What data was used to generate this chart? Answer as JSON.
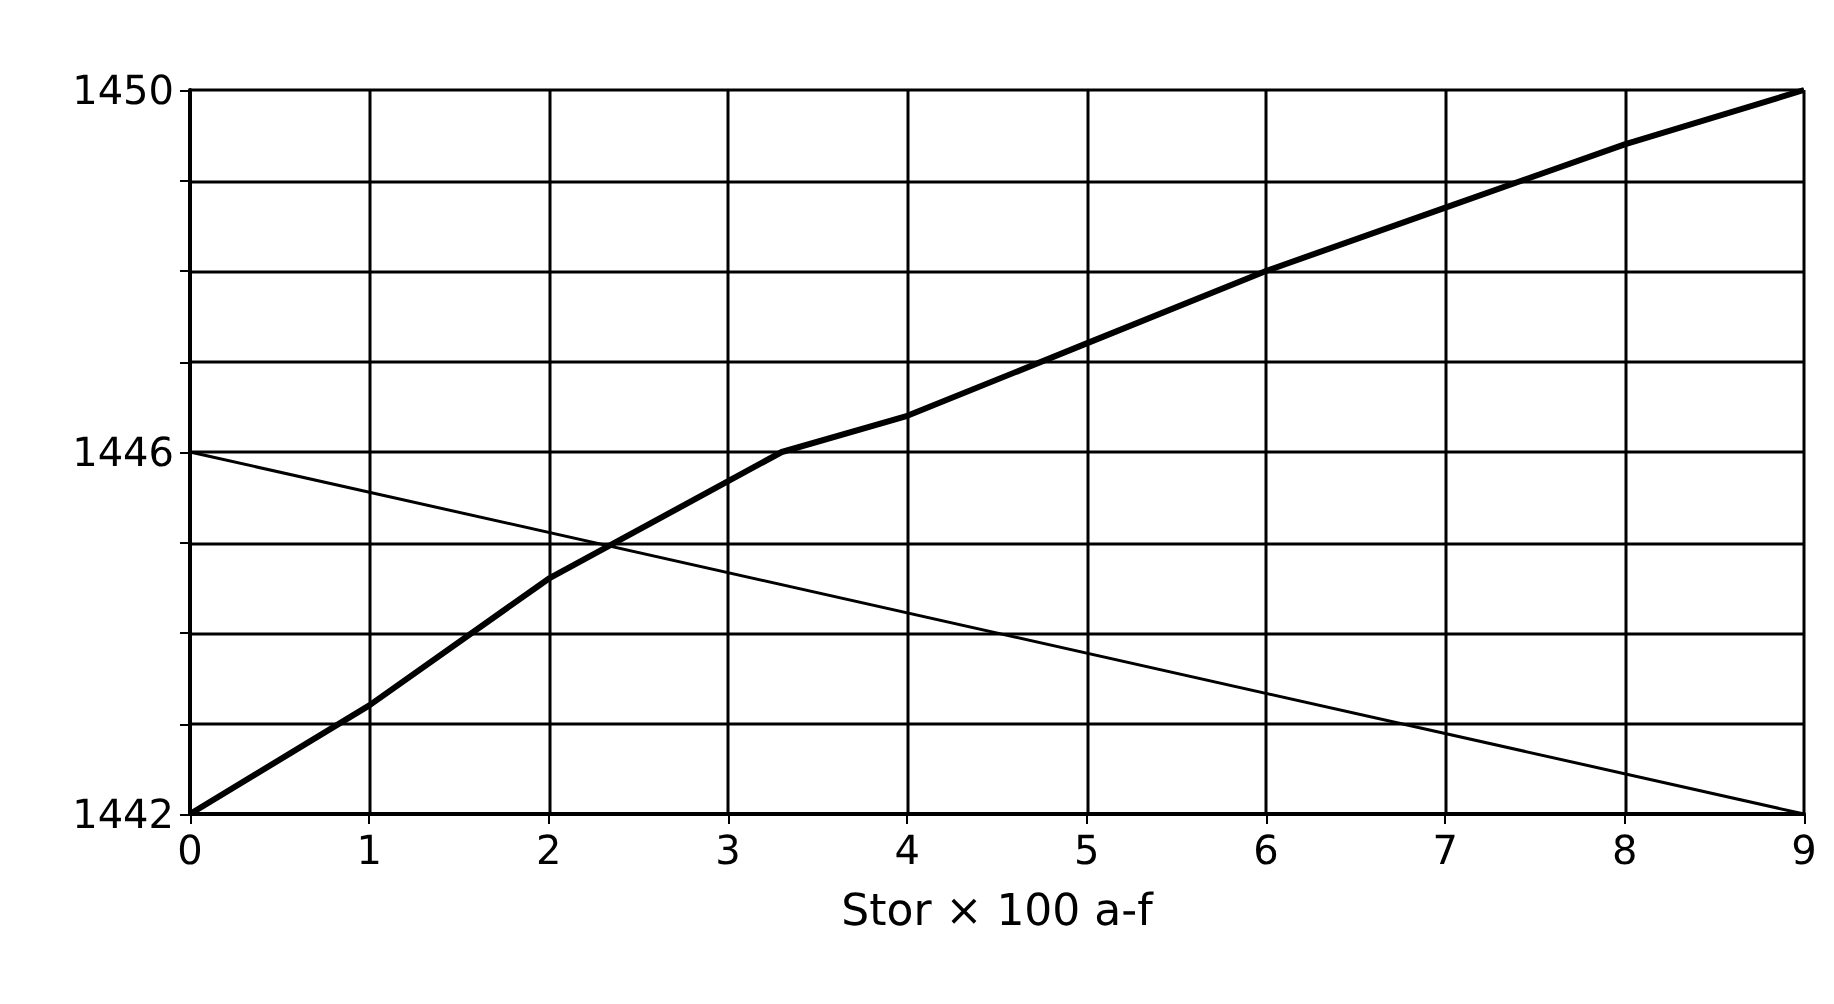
{
  "chart_data": {
    "type": "line",
    "xlabel": "Stor × 100 a-f",
    "series": [
      {
        "color": "#000000",
        "x": [
          0,
          1,
          2,
          3.3,
          4,
          5,
          6,
          7,
          8,
          9
        ],
        "values": [
          1442,
          1443.2,
          1444.6,
          1446,
          1446.4,
          1447.2,
          1448,
          1448.7,
          1449.4,
          1450
        ]
      },
      {
        "color": "#000000",
        "x": [
          0,
          9
        ],
        "values": [
          1446,
          1442
        ]
      }
    ],
    "xlim": [
      0,
      9
    ],
    "xticks": [
      0,
      1,
      2,
      3,
      4,
      5,
      6,
      7,
      8,
      9
    ],
    "ylim": [
      1442,
      1450
    ],
    "yticks": [
      1442,
      {
        "value": 1443,
        "label": null
      },
      {
        "value": 1444,
        "label": null
      },
      {
        "value": 1445,
        "label": null
      },
      1446,
      {
        "value": 1447,
        "label": null
      },
      {
        "value": 1448,
        "label": null
      },
      {
        "value": 1449,
        "label": null
      },
      1450
    ],
    "grid": true,
    "marker": "none",
    "line_style": "solid"
  }
}
